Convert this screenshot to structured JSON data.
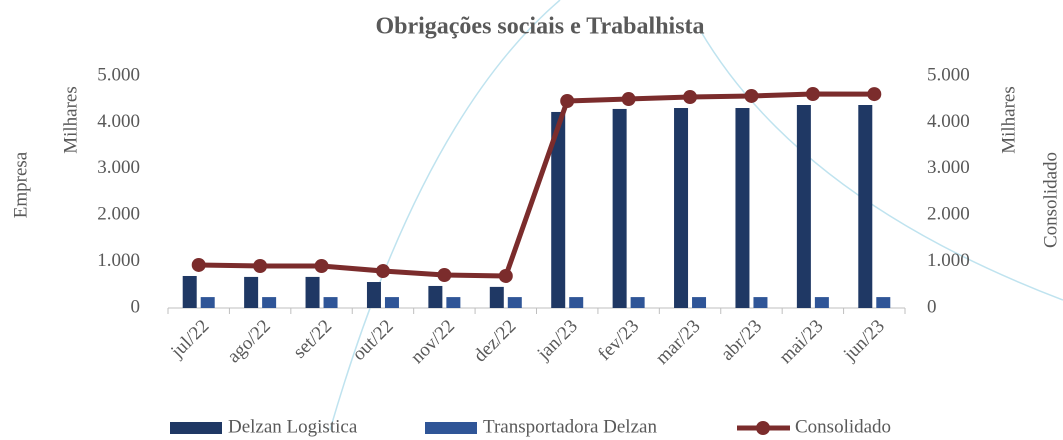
{
  "chart_data": {
    "type": "bar",
    "title": "Obrigações sociais e Trabalhista",
    "y_label": "Empresa",
    "y_unit": "Milhares",
    "y2_label": "Consolidado",
    "y2_unit": "Milhares",
    "categories": [
      "jul/22",
      "ago/22",
      "set/22",
      "out/22",
      "nov/22",
      "dez/22",
      "jan/23",
      "fev/23",
      "mar/23",
      "abr/23",
      "mai/23",
      "jun/23"
    ],
    "series": [
      {
        "name": "Delzan Logistica",
        "type": "bar",
        "color": "#1f3864",
        "values": [
          690,
          670,
          670,
          560,
          475,
          455,
          4225,
          4290,
          4310,
          4310,
          4375,
          4375
        ]
      },
      {
        "name": "Transportadora Delzan",
        "type": "bar",
        "color": "#2f5597",
        "values": [
          235,
          235,
          235,
          235,
          235,
          235,
          235,
          235,
          235,
          235,
          235,
          235
        ]
      },
      {
        "name": "Consolidado",
        "type": "line",
        "axis": "y2",
        "color": "#7b2c2c",
        "values": [
          927,
          905,
          905,
          797,
          711,
          690,
          4461,
          4504,
          4547,
          4570,
          4612,
          4610
        ]
      }
    ],
    "ylim": [
      0,
      5000
    ],
    "yticks": [
      0,
      {
        "value": 1000,
        "label": "1.000"
      },
      {
        "value": 2000,
        "label": "2.000"
      },
      {
        "value": 3000,
        "label": "3.000"
      },
      {
        "value": 4000,
        "label": "4.000"
      },
      {
        "value": 5000,
        "label": "5.000"
      }
    ],
    "y2lim": [
      0,
      5000
    ],
    "y2ticks": [
      0,
      {
        "value": 1000,
        "label": "1.000"
      },
      {
        "value": 2000,
        "label": "2.000"
      },
      {
        "value": 3000,
        "label": "3.000"
      },
      {
        "value": 4000,
        "label": "4.000"
      },
      {
        "value": 5000,
        "label": "5.000"
      }
    ],
    "grid": false,
    "legend": "bottom"
  }
}
